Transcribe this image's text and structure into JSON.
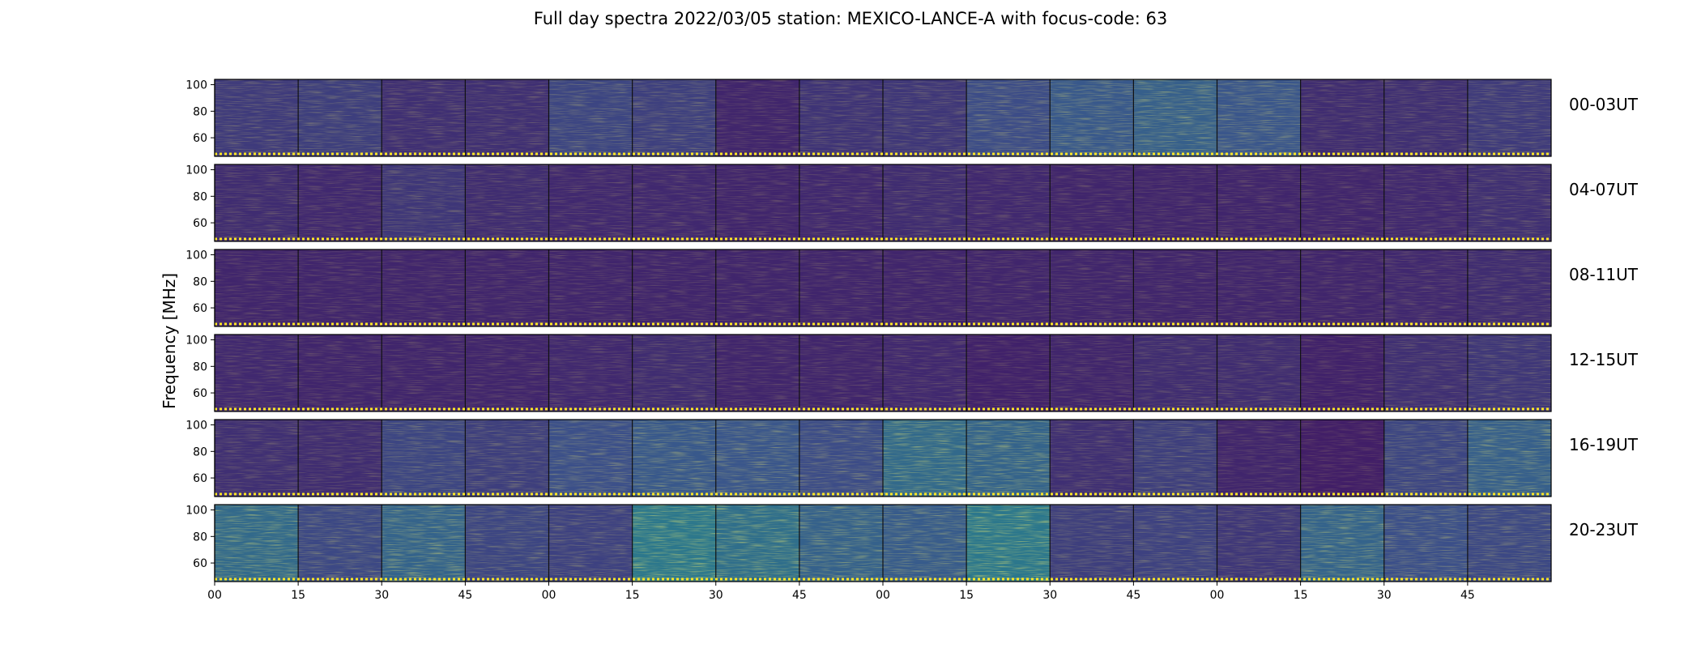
{
  "chart_data": {
    "type": "heatmap",
    "title": "Full day spectra 2022/03/05 station: MEXICO-LANCE-A with focus-code: 63",
    "ylabel": "Frequency [MHz]",
    "xlabel": "",
    "ylim": [
      46,
      104
    ],
    "y_ticks": [
      60,
      80,
      100
    ],
    "x_tick_labels": [
      "00",
      "15",
      "30",
      "45",
      "00",
      "15",
      "30",
      "45",
      "00",
      "15",
      "30",
      "45",
      "00",
      "15",
      "30",
      "45"
    ],
    "panels_per_row": 16,
    "colormap": [
      "#440154",
      "#3b528b",
      "#21918c",
      "#5ec962",
      "#fde725"
    ],
    "grid": false,
    "rows": [
      {
        "label": "00-03UT",
        "intensity": [
          0.32,
          0.34,
          0.26,
          0.26,
          0.38,
          0.35,
          0.2,
          0.28,
          0.3,
          0.42,
          0.5,
          0.55,
          0.48,
          0.24,
          0.26,
          0.32
        ]
      },
      {
        "label": "04-07UT",
        "intensity": [
          0.24,
          0.22,
          0.3,
          0.24,
          0.22,
          0.22,
          0.2,
          0.22,
          0.24,
          0.22,
          0.2,
          0.2,
          0.2,
          0.2,
          0.22,
          0.26
        ]
      },
      {
        "label": "08-11UT",
        "intensity": [
          0.2,
          0.2,
          0.2,
          0.2,
          0.2,
          0.2,
          0.2,
          0.2,
          0.2,
          0.2,
          0.2,
          0.2,
          0.2,
          0.2,
          0.22,
          0.24
        ]
      },
      {
        "label": "12-15UT",
        "intensity": [
          0.22,
          0.2,
          0.2,
          0.2,
          0.22,
          0.24,
          0.2,
          0.2,
          0.22,
          0.18,
          0.2,
          0.24,
          0.24,
          0.18,
          0.26,
          0.3
        ]
      },
      {
        "label": "16-19UT",
        "intensity": [
          0.26,
          0.24,
          0.38,
          0.34,
          0.44,
          0.5,
          0.48,
          0.42,
          0.62,
          0.58,
          0.26,
          0.34,
          0.2,
          0.16,
          0.38,
          0.55
        ]
      },
      {
        "label": "20-23UT",
        "intensity": [
          0.62,
          0.4,
          0.58,
          0.38,
          0.36,
          0.72,
          0.66,
          0.56,
          0.52,
          0.72,
          0.34,
          0.36,
          0.3,
          0.58,
          0.44,
          0.4
        ]
      }
    ]
  }
}
